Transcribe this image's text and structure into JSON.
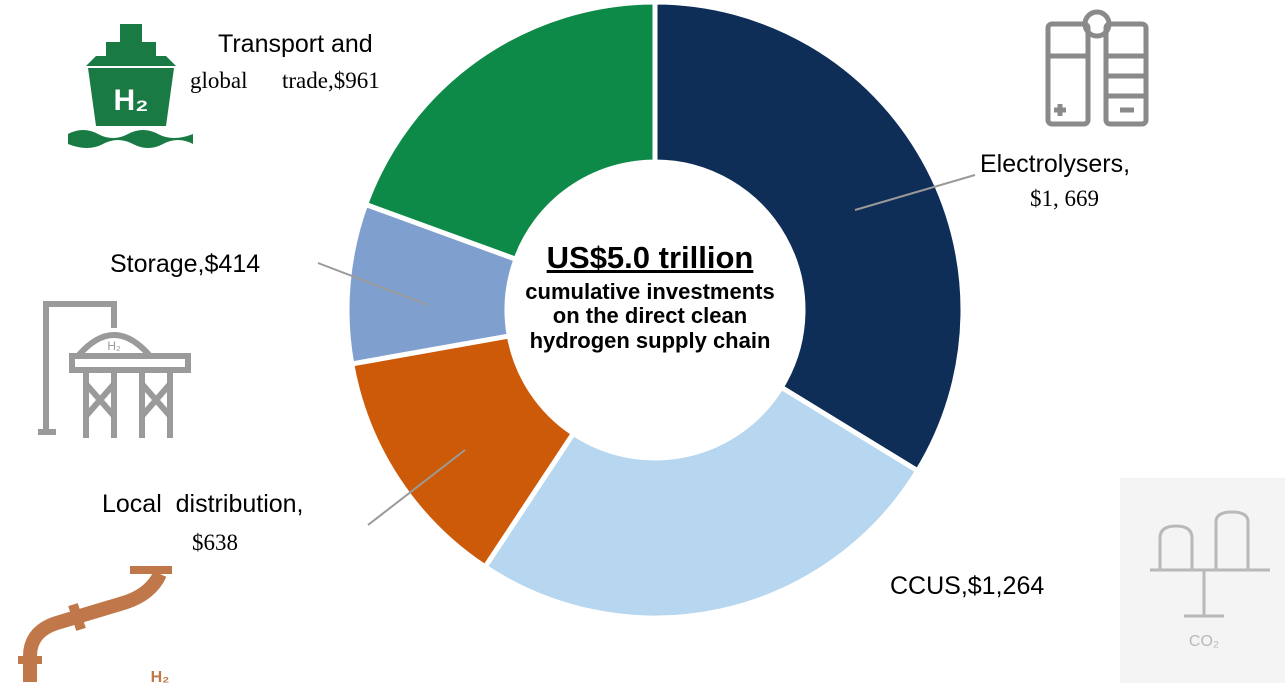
{
  "chart_data": {
    "type": "pie",
    "subtype": "donut",
    "units": "US$ billion",
    "categories": [
      "Electrolysers",
      "CCUS",
      "Local distribution",
      "Storage",
      "Transport and global trade"
    ],
    "values": [
      1669,
      1264,
      638,
      414,
      961
    ],
    "colors": [
      "#0e2d57",
      "#b7d6ef",
      "#cc5a08",
      "#7f9fcf",
      "#0d8a48"
    ],
    "start_angle_deg": 0,
    "direction": "clockwise"
  },
  "center": {
    "title": "US$5.0 trillion",
    "subtitle": "cumulative investments on the direct clean hydrogen supply chain"
  },
  "labels": {
    "transport_line1": "Transport and",
    "transport_line2": "global      trade,$961",
    "electrolysers_line1": "Electrolysers,",
    "electrolysers_line2": "$1, 669",
    "storage": "Storage,$414",
    "local_line1": "Local  distribution,",
    "local_line2": "$638",
    "ccus": "CCUS,$1,264"
  },
  "icons": {
    "ship": "hydrogen-ship-icon",
    "ship_text": "H₂",
    "electrolyser": "electrolyser-icon",
    "storage_tank": "hydrogen-storage-tank-icon",
    "storage_text": "H₂",
    "pipe": "hydrogen-pipe-icon",
    "pipe_text": "H₂",
    "ccus_plant": "co2-capture-plant-icon",
    "ccus_text": "CO₂"
  }
}
